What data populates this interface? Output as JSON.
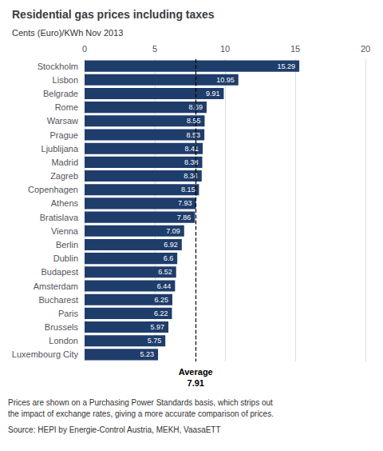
{
  "chart_data": {
    "type": "bar",
    "orientation": "horizontal",
    "title": "Residential gas prices including taxes",
    "subtitle": "Cents (Euro)/KWh Nov 2013",
    "categories": [
      "Stockholm",
      "Lisbon",
      "Belgrade",
      "Rome",
      "Warsaw",
      "Prague",
      "Ljublijana",
      "Madrid",
      "Zagreb",
      "Copenhagen",
      "Athens",
      "Bratislava",
      "Vienna",
      "Berlin",
      "Dublin",
      "Budapest",
      "Amsterdam",
      "Bucharest",
      "Paris",
      "Brussels",
      "London",
      "Luxembourg City"
    ],
    "values": [
      15.29,
      10.95,
      9.91,
      8.69,
      8.55,
      8.53,
      8.41,
      8.38,
      8.34,
      8.15,
      7.93,
      7.86,
      7.09,
      6.92,
      6.6,
      6.52,
      6.44,
      6.25,
      6.22,
      5.97,
      5.75,
      5.23
    ],
    "color": "#1f3d6b",
    "data_labels": true,
    "xlim": [
      0,
      20
    ],
    "xticks": [
      0,
      5,
      10,
      15,
      20
    ],
    "grid": true,
    "average": 7.91,
    "average_label": "Average",
    "footnotes": [
      "Prices are shown on a Purchasing Power Standards basis, which strips out",
      "the impact of exchange rates, giving a more accurate comparison of prices.",
      "Source: HEPI by Energie-Control Austria, MEKH, VaasaETT"
    ]
  }
}
